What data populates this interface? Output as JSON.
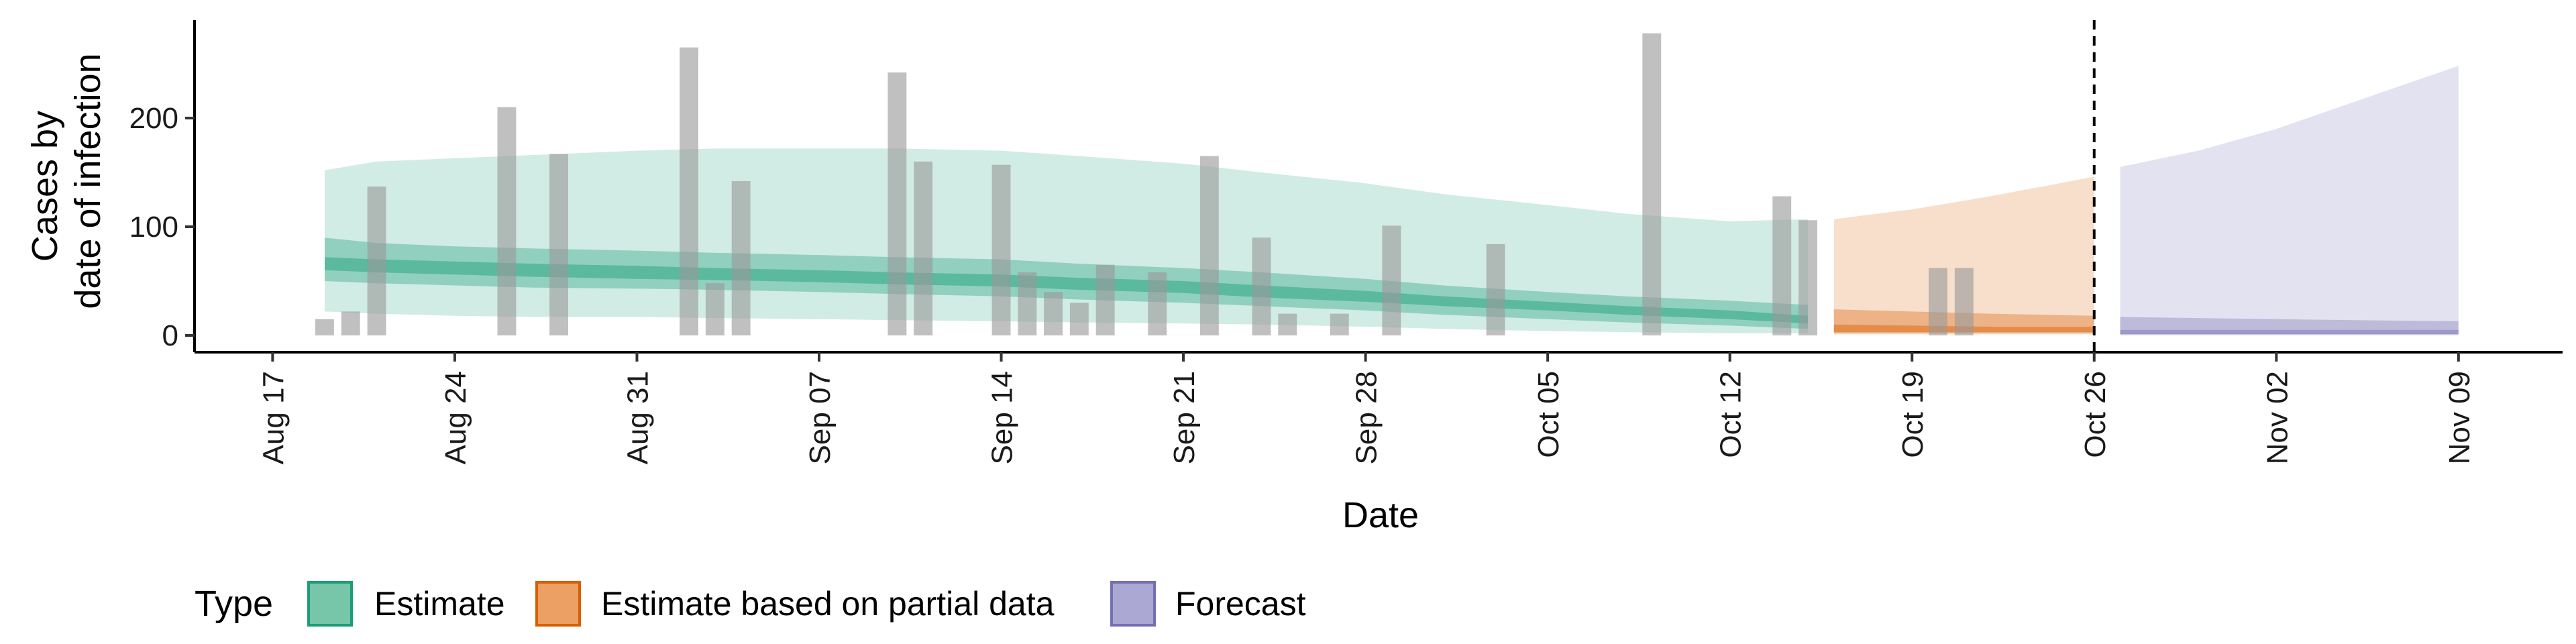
{
  "chart_data": {
    "type": "bar",
    "xlabel": "Date",
    "ylabel": [
      "Cases by",
      "date of infection"
    ],
    "ylim": [
      0,
      290
    ],
    "y_ticks": [
      0,
      100,
      200
    ],
    "x_ticks": [
      "2020-08-17",
      "2020-08-24",
      "2020-08-31",
      "2020-09-07",
      "2020-09-14",
      "2020-09-21",
      "2020-09-28",
      "2020-10-05",
      "2020-10-12",
      "2020-10-19",
      "2020-10-26",
      "2020-11-02",
      "2020-11-09"
    ],
    "x_tick_labels": [
      "Aug 17",
      "Aug 24",
      "Aug 31",
      "Sep 07",
      "Sep 14",
      "Sep 21",
      "Sep 28",
      "Oct 05",
      "Oct 12",
      "Oct 19",
      "Oct 26",
      "Nov 02",
      "Nov 09"
    ],
    "x_range": [
      "2020-08-17",
      "2020-11-09"
    ],
    "grid": false,
    "vline_date": "2020-10-26",
    "bars": [
      {
        "date": "2020-08-19",
        "value": 15
      },
      {
        "date": "2020-08-20",
        "value": 22
      },
      {
        "date": "2020-08-21",
        "value": 137
      },
      {
        "date": "2020-08-26",
        "value": 210
      },
      {
        "date": "2020-08-28",
        "value": 167
      },
      {
        "date": "2020-09-02",
        "value": 265
      },
      {
        "date": "2020-09-03",
        "value": 48
      },
      {
        "date": "2020-09-04",
        "value": 142
      },
      {
        "date": "2020-09-10",
        "value": 242
      },
      {
        "date": "2020-09-11",
        "value": 160
      },
      {
        "date": "2020-09-14",
        "value": 157
      },
      {
        "date": "2020-09-15",
        "value": 58
      },
      {
        "date": "2020-09-16",
        "value": 40
      },
      {
        "date": "2020-09-17",
        "value": 30
      },
      {
        "date": "2020-09-18",
        "value": 65
      },
      {
        "date": "2020-09-20",
        "value": 58
      },
      {
        "date": "2020-09-22",
        "value": 165
      },
      {
        "date": "2020-09-24",
        "value": 90
      },
      {
        "date": "2020-09-25",
        "value": 20
      },
      {
        "date": "2020-09-27",
        "value": 20
      },
      {
        "date": "2020-09-29",
        "value": 101
      },
      {
        "date": "2020-10-03",
        "value": 84
      },
      {
        "date": "2020-10-09",
        "value": 278
      },
      {
        "date": "2020-10-14",
        "value": 128
      },
      {
        "date": "2020-10-15",
        "value": 106
      },
      {
        "date": "2020-10-20",
        "value": 62
      },
      {
        "date": "2020-10-21",
        "value": 62
      }
    ],
    "series": [
      {
        "name": "Estimate",
        "color": "#1b9e77",
        "dates": [
          "2020-08-19",
          "2020-08-21",
          "2020-08-24",
          "2020-08-27",
          "2020-08-31",
          "2020-09-03",
          "2020-09-07",
          "2020-09-10",
          "2020-09-14",
          "2020-09-17",
          "2020-09-21",
          "2020-09-24",
          "2020-09-28",
          "2020-10-01",
          "2020-10-05",
          "2020-10-08",
          "2020-10-12",
          "2020-10-15"
        ],
        "outer_upper": [
          152,
          160,
          163,
          166,
          170,
          172,
          172,
          172,
          170,
          165,
          158,
          150,
          140,
          130,
          120,
          112,
          105,
          107
        ],
        "outer_lower": [
          22,
          20,
          18,
          17,
          17,
          16,
          15,
          14,
          13,
          12,
          11,
          10,
          8,
          6,
          4,
          3,
          2,
          2
        ],
        "inner_upper": [
          90,
          85,
          82,
          80,
          78,
          76,
          74,
          72,
          70,
          66,
          62,
          58,
          52,
          46,
          40,
          36,
          32,
          28
        ],
        "inner_lower": [
          50,
          48,
          46,
          44,
          43,
          42,
          40,
          38,
          36,
          33,
          30,
          27,
          23,
          19,
          15,
          12,
          9,
          6
        ],
        "core_upper": [
          72,
          70,
          68,
          66,
          64,
          62,
          60,
          58,
          56,
          53,
          50,
          46,
          41,
          36,
          31,
          27,
          23,
          18
        ],
        "core_lower": [
          60,
          58,
          56,
          54,
          52,
          51,
          49,
          47,
          45,
          42,
          39,
          35,
          31,
          27,
          23,
          19,
          15,
          11
        ]
      },
      {
        "name": "Estimate based on partial data",
        "color": "#d95f02",
        "dates": [
          "2020-10-16",
          "2020-10-19",
          "2020-10-22",
          "2020-10-26"
        ],
        "outer_upper": [
          107,
          116,
          128,
          146
        ],
        "outer_lower": [
          1,
          1,
          1,
          1
        ],
        "inner_upper": [
          24,
          22,
          20,
          18
        ],
        "inner_lower": [
          2,
          2,
          2,
          2
        ],
        "core_upper": [
          10,
          9,
          8,
          8
        ],
        "core_lower": [
          3,
          3,
          3,
          3
        ]
      },
      {
        "name": "Forecast",
        "color": "#7570b3",
        "dates": [
          "2020-10-27",
          "2020-10-30",
          "2020-11-02",
          "2020-11-05",
          "2020-11-09"
        ],
        "outer_upper": [
          155,
          170,
          190,
          215,
          248
        ],
        "outer_lower": [
          0,
          0,
          0,
          0,
          0
        ],
        "inner_upper": [
          17,
          16,
          15,
          14,
          13
        ],
        "inner_lower": [
          1,
          1,
          1,
          1,
          1
        ],
        "core_upper": [
          5,
          5,
          5,
          5,
          5
        ],
        "core_lower": [
          1,
          1,
          1,
          1,
          1
        ]
      }
    ],
    "legend": {
      "title": "Type",
      "position": "bottom-left",
      "items": [
        {
          "label": "Estimate",
          "fill": "#77c6a9",
          "stroke": "#1b9e77"
        },
        {
          "label": "Estimate based on partial data",
          "fill": "#eca064",
          "stroke": "#d95f02"
        },
        {
          "label": "Forecast",
          "fill": "#aba8d4",
          "stroke": "#7570b3"
        }
      ]
    }
  }
}
